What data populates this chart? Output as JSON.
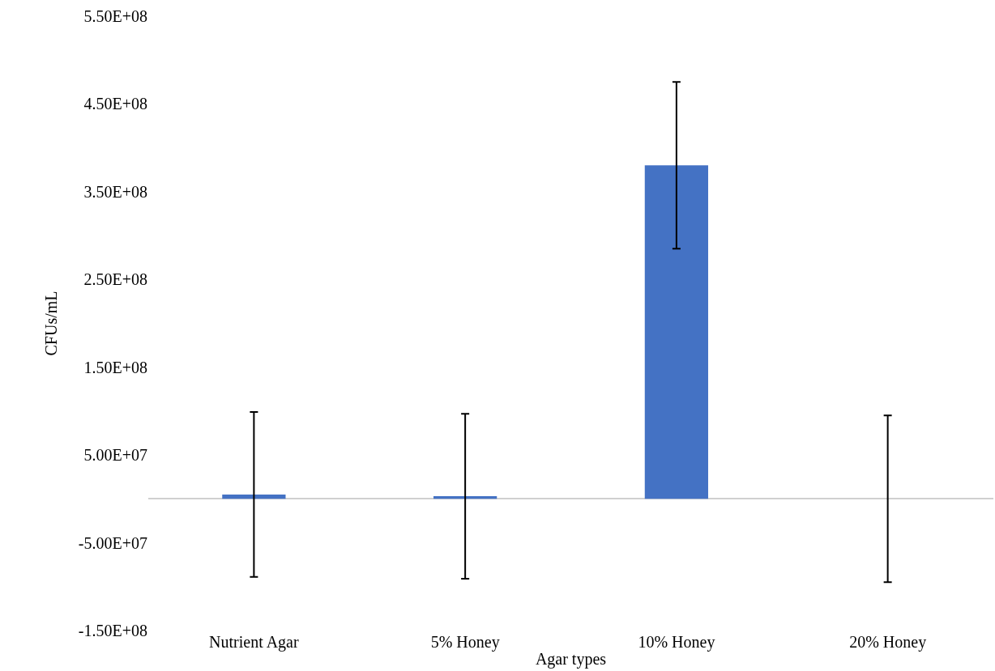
{
  "chart_data": {
    "type": "bar",
    "xlabel": "Agar types",
    "ylabel": "CFUs/mL",
    "categories": [
      "Nutrient Agar",
      "5% Honey",
      "10% Honey",
      "20% Honey"
    ],
    "values": [
      5000000,
      3000000,
      380000000,
      0
    ],
    "errors": [
      94000000,
      94000000,
      95000000,
      95000000
    ],
    "color": "#4472c4",
    "ylim": [
      -150000000,
      550000000
    ],
    "yticks": [
      {
        "value": -150000000,
        "label": "-1.50E+08"
      },
      {
        "value": -50000000,
        "label": "-5.00E+07"
      },
      {
        "value": 50000000,
        "label": "5.00E+07"
      },
      {
        "value": 150000000,
        "label": "1.50E+08"
      },
      {
        "value": 250000000,
        "label": "2.50E+08"
      },
      {
        "value": 350000000,
        "label": "3.50E+08"
      },
      {
        "value": 450000000,
        "label": "4.50E+08"
      },
      {
        "value": 550000000,
        "label": "5.50E+08"
      }
    ],
    "grid": false
  }
}
